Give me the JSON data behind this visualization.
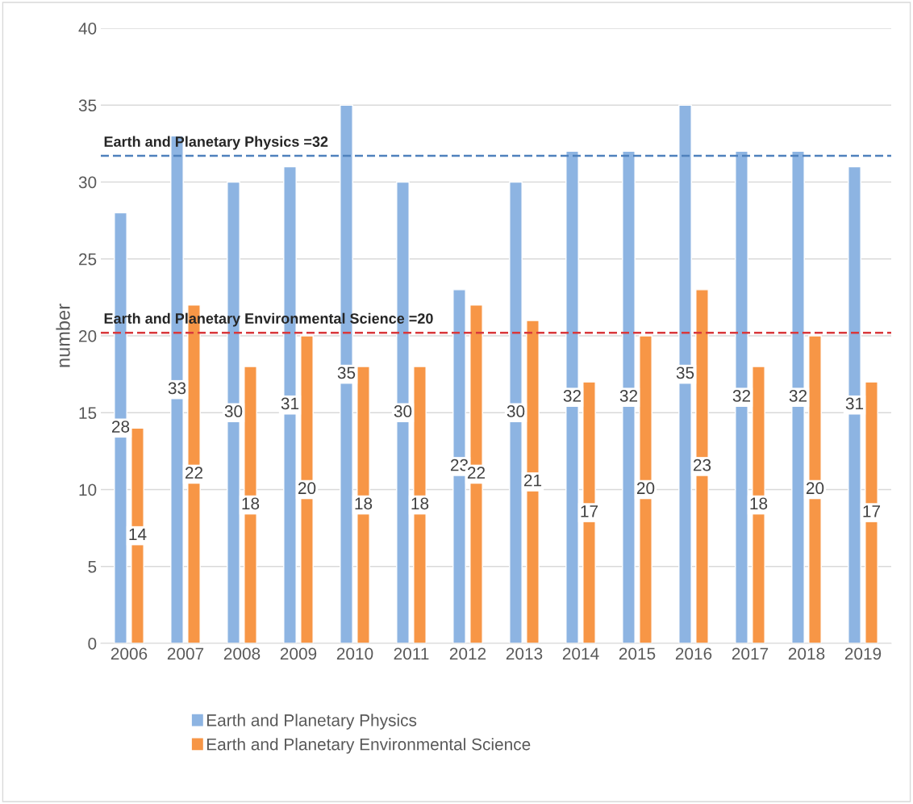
{
  "chart_data": {
    "type": "bar",
    "ylabel": "number",
    "categories": [
      "2006",
      "2007",
      "2008",
      "2009",
      "2010",
      "2011",
      "2012",
      "2013",
      "2014",
      "2015",
      "2016",
      "2017",
      "2018",
      "2019"
    ],
    "series": [
      {
        "name": "Earth and Planetary Physics",
        "color": "#8db4e2",
        "values": [
          28,
          33,
          30,
          31,
          35,
          30,
          23,
          30,
          32,
          32,
          35,
          32,
          32,
          31
        ]
      },
      {
        "name": "Earth and Planetary Environmental Science",
        "color": "#f79646",
        "values": [
          14,
          22,
          18,
          20,
          18,
          18,
          22,
          21,
          17,
          20,
          23,
          18,
          20,
          17
        ]
      }
    ],
    "ylim": [
      0,
      40
    ],
    "yticks": [
      0,
      5,
      10,
      15,
      20,
      25,
      30,
      35,
      40
    ],
    "ref_lines": [
      {
        "axis": "y",
        "value": 31.7,
        "label": "Earth and Planetary Physics =32",
        "color": "#4f81bd",
        "line_style": "dashed"
      },
      {
        "axis": "y",
        "value": 20.2,
        "label": "Earth and Planetary Environmental Science =20",
        "color": "#d9393c",
        "line_style": "dashed"
      }
    ],
    "data_labels": true,
    "grid": "y",
    "legend": "bottom"
  }
}
